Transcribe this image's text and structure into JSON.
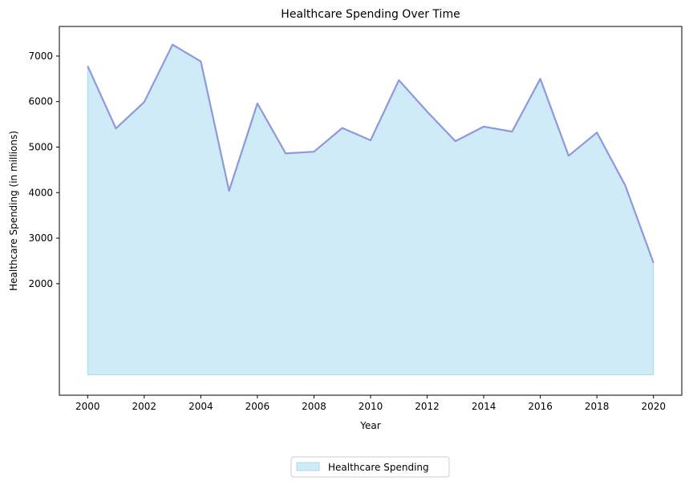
{
  "chart_data": {
    "type": "area",
    "title": "Healthcare Spending Over Time",
    "xlabel": "Year",
    "ylabel": "Healthcare Spending (in millions)",
    "x": [
      2000,
      2001,
      2002,
      2003,
      2004,
      2005,
      2006,
      2007,
      2008,
      2009,
      2010,
      2011,
      2012,
      2013,
      2014,
      2015,
      2016,
      2017,
      2018,
      2019,
      2020
    ],
    "series": [
      {
        "name": "Healthcare Spending",
        "values": [
          6780,
          5410,
          5990,
          7250,
          6880,
          4040,
          5960,
          4860,
          4900,
          5420,
          5150,
          6470,
          5780,
          5130,
          5450,
          5340,
          6500,
          4810,
          5320,
          4160,
          2460
        ]
      }
    ],
    "xticks": [
      2000,
      2002,
      2004,
      2006,
      2008,
      2010,
      2012,
      2014,
      2016,
      2018,
      2020
    ],
    "yticks": [
      2000,
      3000,
      4000,
      5000,
      6000,
      7000
    ],
    "xlim": [
      1999,
      2021
    ],
    "ylim": [
      -450,
      7650
    ],
    "fill_baseline": 0,
    "legend_position": "below-center",
    "grid": false,
    "colors": {
      "line": "#8f98de",
      "fill": "#87ceeb",
      "fill_edge": "#a8d8ee"
    }
  }
}
